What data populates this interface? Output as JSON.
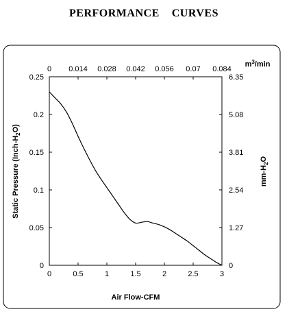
{
  "chart_data": {
    "type": "line",
    "title": "PERFORMANCE    CURVES",
    "xlabel": "Air Flow-CFM",
    "ylabel_left": "Static Pressure (Inch-H",
    "ylabel_left_sub": "2",
    "ylabel_left_end": "O)",
    "top_axis_unit_main": "m",
    "top_axis_unit_sup": "3",
    "top_axis_unit_end": "/min",
    "ylabel_right_main": "mm-H",
    "ylabel_right_sub": "2",
    "ylabel_right_end": "O",
    "xlim": [
      0,
      3
    ],
    "ylim": [
      0,
      0.25
    ],
    "x_ticks": [
      "0",
      "0.5",
      "1",
      "1.5",
      "2",
      "2.5",
      "3"
    ],
    "y_ticks_left": [
      "0",
      "0.05",
      "0.1",
      "0.15",
      "0.2",
      "0.25"
    ],
    "top_ticks": [
      "0",
      "0.014",
      "0.028",
      "0.042",
      "0.056",
      "0.07",
      "0.084"
    ],
    "right_ticks": [
      "0",
      "1.27",
      "2.54",
      "3.81",
      "5.08",
      "6.35"
    ],
    "grid": false,
    "series": [
      {
        "x": [
          0,
          0.1,
          0.2,
          0.3,
          0.4,
          0.5,
          0.6,
          0.7,
          0.8,
          0.9,
          1.0,
          1.1,
          1.2,
          1.3,
          1.4,
          1.5,
          1.6,
          1.7,
          1.8,
          1.9,
          2.0,
          2.1,
          2.2,
          2.3,
          2.4,
          2.5,
          2.6,
          2.7,
          2.8,
          2.9,
          3.0
        ],
        "y": [
          0.23,
          0.222,
          0.214,
          0.203,
          0.188,
          0.171,
          0.155,
          0.14,
          0.126,
          0.114,
          0.103,
          0.092,
          0.081,
          0.07,
          0.061,
          0.056,
          0.057,
          0.058,
          0.056,
          0.054,
          0.051,
          0.047,
          0.042,
          0.037,
          0.032,
          0.026,
          0.02,
          0.014,
          0.009,
          0.004,
          0.0
        ]
      }
    ]
  }
}
